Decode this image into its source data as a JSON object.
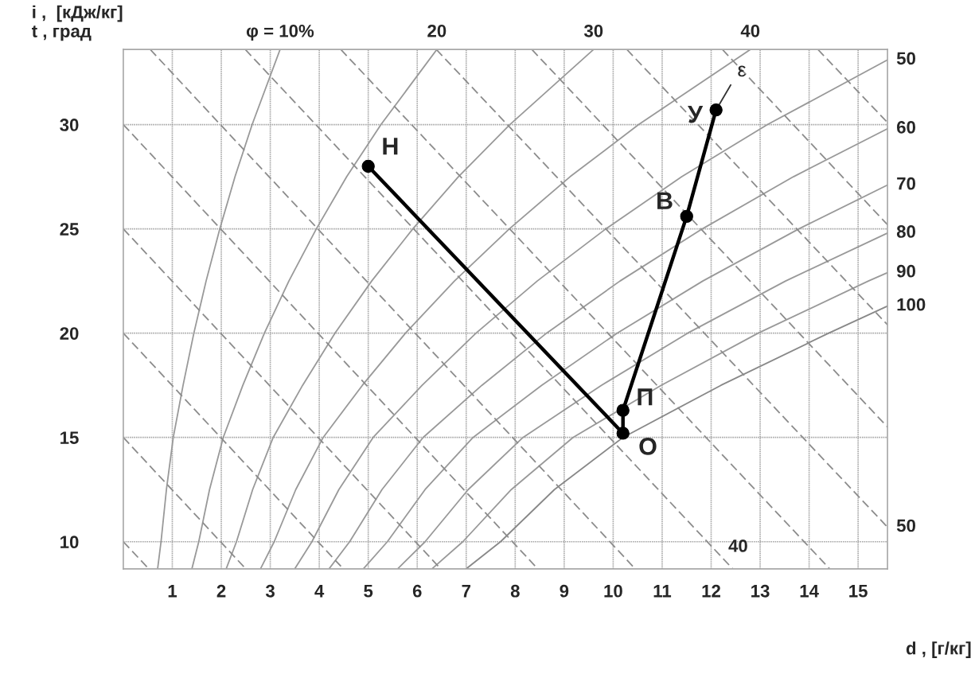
{
  "chart_data": {
    "type": "line",
    "xlabel": "d , [г/кг]",
    "ylabel": "i ,  [кДж/кг]\nt , град",
    "xlim": [
      0,
      15.6
    ],
    "ylim": [
      8.7,
      33.6
    ],
    "xticks": [
      1,
      2,
      3,
      4,
      5,
      6,
      7,
      8,
      9,
      10,
      11,
      12,
      13,
      14,
      15
    ],
    "yticks": [
      10,
      15,
      20,
      25,
      30
    ],
    "grid": true,
    "legend": false,
    "series": [
      {
        "name": "φ = 10%",
        "color": "#999999",
        "line_style": "solid",
        "x": [
          0.7,
          0.77,
          0.88,
          1.02,
          1.22,
          1.44,
          1.69,
          1.97,
          2.28,
          2.63,
          3.2
        ],
        "values": [
          8.7,
          10,
          12.5,
          15,
          17.5,
          20,
          22.5,
          25,
          27.5,
          30,
          33.6
        ]
      },
      {
        "name": "20",
        "color": "#999999",
        "line_style": "solid",
        "x": [
          1.4,
          1.54,
          1.76,
          2.04,
          2.44,
          2.88,
          3.38,
          3.94,
          4.56,
          5.26,
          6.4
        ],
        "values": [
          8.7,
          10,
          12.5,
          15,
          17.5,
          20,
          22.5,
          25,
          27.5,
          30,
          33.6
        ]
      },
      {
        "name": "30",
        "color": "#999999",
        "line_style": "solid",
        "x": [
          2.1,
          2.31,
          2.64,
          3.06,
          3.66,
          4.32,
          5.07,
          5.91,
          6.84,
          7.89,
          9.6
        ],
        "values": [
          8.7,
          10,
          12.5,
          15,
          17.5,
          20,
          22.5,
          25,
          27.5,
          30,
          33.6
        ]
      },
      {
        "name": "40",
        "color": "#999999",
        "line_style": "solid",
        "x": [
          2.8,
          3.08,
          3.52,
          4.08,
          4.88,
          5.76,
          6.76,
          7.88,
          9.12,
          10.52,
          12.8
        ],
        "values": [
          8.7,
          10,
          12.5,
          15,
          17.5,
          20,
          22.5,
          25,
          27.5,
          30,
          33.6
        ]
      },
      {
        "name": "50",
        "color": "#999999",
        "line_style": "solid",
        "x": [
          3.5,
          3.85,
          4.4,
          5.1,
          6.1,
          7.2,
          8.45,
          9.85,
          11.4,
          13.15,
          15.6
        ],
        "values": [
          8.7,
          10,
          12.5,
          15,
          17.5,
          20,
          22.5,
          25,
          27.5,
          30,
          33.1
        ]
      },
      {
        "name": "60",
        "color": "#999999",
        "line_style": "solid",
        "x": [
          4.2,
          4.62,
          5.28,
          6.12,
          7.32,
          8.64,
          10.14,
          11.82,
          13.68,
          15.6
        ],
        "values": [
          8.7,
          10,
          12.5,
          15,
          17.5,
          20,
          22.5,
          25,
          27.5,
          29.8
        ]
      },
      {
        "name": "70",
        "color": "#999999",
        "line_style": "solid",
        "x": [
          4.9,
          5.39,
          6.16,
          7.14,
          8.54,
          10.08,
          11.83,
          13.79,
          15.6
        ],
        "values": [
          8.7,
          10,
          12.5,
          15,
          17.5,
          20,
          22.5,
          25,
          27.1
        ]
      },
      {
        "name": "80",
        "color": "#999999",
        "line_style": "solid",
        "x": [
          5.6,
          6.16,
          7.04,
          8.16,
          9.76,
          11.52,
          13.52,
          15.6
        ],
        "values": [
          8.7,
          10,
          12.5,
          15,
          17.5,
          20,
          22.5,
          24.8
        ]
      },
      {
        "name": "90",
        "color": "#999999",
        "line_style": "solid",
        "x": [
          6.3,
          6.93,
          7.92,
          9.18,
          10.98,
          12.96,
          15.21,
          15.6
        ],
        "values": [
          8.7,
          10,
          12.5,
          15,
          17.5,
          20,
          22.5,
          22.9
        ]
      },
      {
        "name": "100",
        "color": "#888888",
        "line_style": "solid",
        "x": [
          7.0,
          7.7,
          8.8,
          10.2,
          12.2,
          14.4,
          15.6
        ],
        "values": [
          8.7,
          10,
          12.5,
          15,
          17.5,
          20,
          21.3
        ]
      },
      {
        "color": "#8c8c8c",
        "line_style": "dashed",
        "x": [
          0,
          0.52
        ],
        "values": [
          10,
          8.7
        ]
      },
      {
        "color": "#8c8c8c",
        "line_style": "dashed",
        "x": [
          0,
          2.5
        ],
        "values": [
          15,
          8.7
        ]
      },
      {
        "color": "#8c8c8c",
        "line_style": "dashed",
        "x": [
          0,
          4.49
        ],
        "values": [
          20,
          8.7
        ]
      },
      {
        "color": "#8c8c8c",
        "line_style": "dashed",
        "x": [
          0,
          6.48
        ],
        "values": [
          25,
          8.7
        ]
      },
      {
        "color": "#8c8c8c",
        "line_style": "dashed",
        "x": [
          0,
          8.46
        ],
        "values": [
          30,
          8.7
        ]
      },
      {
        "color": "#8c8c8c",
        "line_style": "dashed",
        "x": [
          0.55,
          10.45
        ],
        "values": [
          33.6,
          8.7
        ]
      },
      {
        "name": "40",
        "color": "#8c8c8c",
        "line_style": "dashed",
        "x": [
          2.49,
          12.44
        ],
        "values": [
          33.6,
          8.7
        ]
      },
      {
        "color": "#8c8c8c",
        "line_style": "dashed",
        "x": [
          4.44,
          14.42
        ],
        "values": [
          33.6,
          8.7
        ]
      },
      {
        "name": "50",
        "color": "#8c8c8c",
        "line_style": "dashed",
        "x": [
          6.39,
          15.6
        ],
        "values": [
          33.6,
          10.7
        ]
      },
      {
        "color": "#8c8c8c",
        "line_style": "dashed",
        "x": [
          8.34,
          15.6
        ],
        "values": [
          33.6,
          15.5
        ]
      },
      {
        "color": "#8c8c8c",
        "line_style": "dashed",
        "x": [
          10.28,
          15.6
        ],
        "values": [
          33.6,
          20.4
        ]
      },
      {
        "color": "#8c8c8c",
        "line_style": "dashed",
        "x": [
          12.23,
          15.6
        ],
        "values": [
          33.6,
          25.2
        ]
      },
      {
        "color": "#8c8c8c",
        "line_style": "dashed",
        "x": [
          14.18,
          15.6
        ],
        "values": [
          33.6,
          30.1
        ]
      },
      {
        "color": "#000000",
        "line_style": "solid",
        "marker": "circle",
        "x": [
          5.0,
          10.2,
          10.2,
          11.5,
          12.1
        ],
        "values": [
          28.0,
          15.2,
          16.3,
          25.6,
          30.7
        ]
      },
      {
        "color": "#333333",
        "line_style": "solid",
        "marker": "none",
        "x": [
          12.1,
          12.4
        ],
        "values": [
          30.7,
          31.9
        ]
      }
    ],
    "annotations": [
      {
        "text": "Н",
        "x": 5.0,
        "y": 28.0
      },
      {
        "text": "О",
        "x": 10.2,
        "y": 15.2
      },
      {
        "text": "П",
        "x": 10.2,
        "y": 16.3
      },
      {
        "text": "В",
        "x": 11.5,
        "y": 25.6
      },
      {
        "text": "У",
        "x": 12.1,
        "y": 30.7
      },
      {
        "text": "ε",
        "x": 12.4,
        "y": 31.9
      }
    ]
  }
}
